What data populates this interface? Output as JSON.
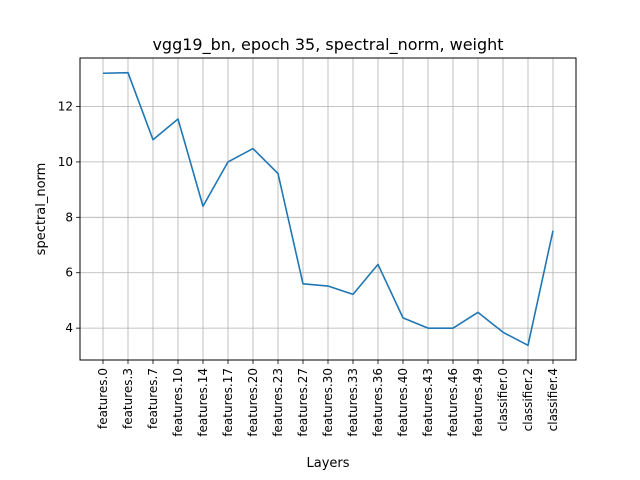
{
  "chart_data": {
    "type": "line",
    "title": "vgg19_bn, epoch 35, spectral_norm, weight",
    "xlabel": "Layers",
    "ylabel": "spectral_norm",
    "grid": true,
    "ylim": [
      2.85,
      13.75
    ],
    "yticks": [
      4,
      6,
      8,
      10,
      12
    ],
    "categories": [
      "features.0",
      "features.3",
      "features.7",
      "features.10",
      "features.14",
      "features.17",
      "features.20",
      "features.23",
      "features.27",
      "features.30",
      "features.33",
      "features.36",
      "features.40",
      "features.43",
      "features.46",
      "features.49",
      "classifier.0",
      "classifier.2",
      "classifier.4"
    ],
    "series": [
      {
        "color": "#1f77b4",
        "values": [
          13.2,
          13.22,
          10.8,
          11.55,
          8.4,
          10.0,
          10.48,
          9.58,
          5.6,
          5.52,
          5.22,
          6.3,
          4.37,
          4.0,
          4.0,
          4.57,
          3.85,
          3.38,
          7.52
        ]
      }
    ]
  }
}
